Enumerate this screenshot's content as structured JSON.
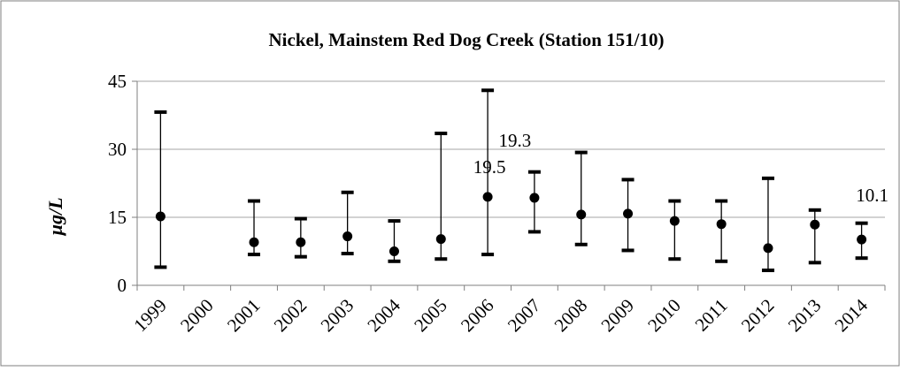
{
  "chart_data": {
    "type": "scatter",
    "title": "Nickel, Mainstem Red Dog Creek (Station 151/10)",
    "ylabel": "µg/L",
    "xlabel": "",
    "ylim": [
      0,
      45
    ],
    "yticks": [
      0,
      15,
      30,
      45
    ],
    "grid": true,
    "categories": [
      "1999",
      "2000",
      "2001",
      "2002",
      "2003",
      "2004",
      "2005",
      "2006",
      "2007",
      "2008",
      "2009",
      "2010",
      "2011",
      "2012",
      "2013",
      "2014"
    ],
    "series": [
      {
        "mean": [
          15.2,
          null,
          9.5,
          9.5,
          10.8,
          7.5,
          10.2,
          19.5,
          19.3,
          15.6,
          15.8,
          14.2,
          13.5,
          8.2,
          13.4,
          10.1
        ],
        "min": [
          4.0,
          null,
          6.8,
          6.3,
          7.0,
          5.3,
          5.8,
          6.8,
          11.8,
          9.0,
          7.7,
          5.8,
          5.3,
          3.3,
          5.0,
          6.0
        ],
        "max": [
          38.2,
          null,
          18.6,
          14.7,
          20.5,
          14.2,
          33.5,
          43.0,
          25.0,
          29.3,
          23.3,
          18.6,
          18.6,
          23.6,
          16.6,
          13.7
        ]
      }
    ],
    "data_labels": [
      {
        "category": "2006",
        "text": "19.5"
      },
      {
        "category": "2007",
        "text": "19.3"
      },
      {
        "category": "2014",
        "text": "10.1"
      }
    ],
    "marker_color": "#000000",
    "grid_color": "#a6a6a6"
  }
}
